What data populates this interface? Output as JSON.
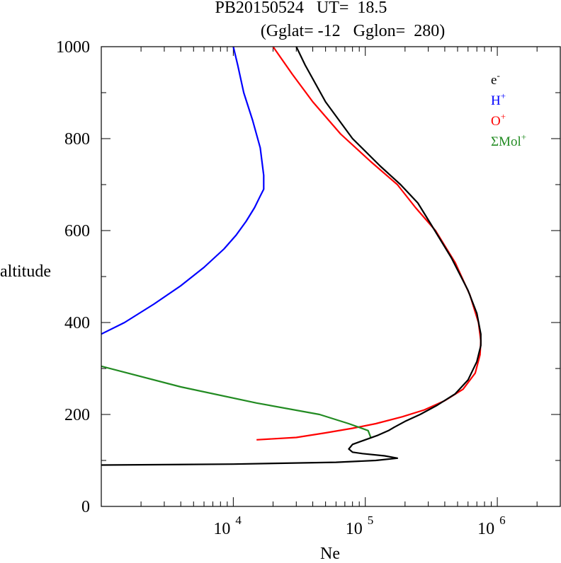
{
  "title_line1": "PB20150524   UT=  18.5",
  "title_line2": "(Gglat= -12   Gglon=  280)",
  "chart_data": {
    "type": "line",
    "xlabel": "Ne",
    "ylabel": "altitude",
    "xscale": "log",
    "xlim": [
      1000,
      3000000
    ],
    "ylim": [
      0,
      1000
    ],
    "x_tick_labels": [
      {
        "base": "10",
        "exp": "4",
        "value": 10000
      },
      {
        "base": "10",
        "exp": "5",
        "value": 100000
      },
      {
        "base": "10",
        "exp": "6",
        "value": 1000000
      }
    ],
    "y_ticks": [
      0,
      200,
      400,
      600,
      800,
      1000
    ],
    "y_tick_labels": [
      "0",
      "200",
      "400",
      "600",
      "800",
      "1000"
    ],
    "legend_placement": "top-right",
    "series": [
      {
        "name": "e",
        "sup": "-",
        "color": "#000000",
        "points": [
          [
            1000,
            90
          ],
          [
            10000,
            92
          ],
          [
            60000,
            96
          ],
          [
            120000,
            100
          ],
          [
            175000,
            105
          ],
          [
            140000,
            110
          ],
          [
            95000,
            115
          ],
          [
            80000,
            118
          ],
          [
            75000,
            125
          ],
          [
            80000,
            135
          ],
          [
            100000,
            145
          ],
          [
            125000,
            155
          ],
          [
            150000,
            165
          ],
          [
            165000,
            172
          ],
          [
            200000,
            185
          ],
          [
            260000,
            200
          ],
          [
            350000,
            220
          ],
          [
            480000,
            245
          ],
          [
            600000,
            275
          ],
          [
            700000,
            315
          ],
          [
            750000,
            350
          ],
          [
            750000,
            375
          ],
          [
            700000,
            420
          ],
          [
            600000,
            470
          ],
          [
            450000,
            540
          ],
          [
            320000,
            610
          ],
          [
            250000,
            660
          ],
          [
            185000,
            700
          ],
          [
            130000,
            740
          ],
          [
            80000,
            800
          ],
          [
            50000,
            880
          ],
          [
            35000,
            960
          ],
          [
            30000,
            1000
          ]
        ]
      },
      {
        "name": "H",
        "sup": "+",
        "color": "#0000ff",
        "points": [
          [
            1000,
            375
          ],
          [
            1500,
            400
          ],
          [
            2500,
            440
          ],
          [
            4000,
            480
          ],
          [
            6000,
            520
          ],
          [
            8500,
            560
          ],
          [
            10500,
            590
          ],
          [
            12500,
            620
          ],
          [
            14500,
            650
          ],
          [
            16000,
            675
          ],
          [
            17000,
            690
          ],
          [
            17000,
            720
          ],
          [
            16000,
            780
          ],
          [
            14000,
            840
          ],
          [
            12000,
            900
          ],
          [
            10800,
            960
          ],
          [
            10000,
            1000
          ]
        ]
      },
      {
        "name": "O",
        "sup": "+",
        "color": "#ff0000",
        "points": [
          [
            15000,
            145
          ],
          [
            30000,
            150
          ],
          [
            50000,
            160
          ],
          [
            80000,
            170
          ],
          [
            120000,
            180
          ],
          [
            190000,
            195
          ],
          [
            280000,
            210
          ],
          [
            400000,
            230
          ],
          [
            550000,
            255
          ],
          [
            680000,
            290
          ],
          [
            740000,
            330
          ],
          [
            750000,
            360
          ],
          [
            720000,
            400
          ],
          [
            620000,
            460
          ],
          [
            480000,
            530
          ],
          [
            340000,
            600
          ],
          [
            240000,
            650
          ],
          [
            175000,
            700
          ],
          [
            110000,
            750
          ],
          [
            65000,
            810
          ],
          [
            40000,
            880
          ],
          [
            28000,
            940
          ],
          [
            20000,
            1000
          ]
        ]
      },
      {
        "name": "ΣMol",
        "sup": "+",
        "color": "#228b22",
        "points": [
          [
            1000,
            305
          ],
          [
            4000,
            260
          ],
          [
            15000,
            225
          ],
          [
            45000,
            200
          ],
          [
            75000,
            180
          ],
          [
            105000,
            165
          ],
          [
            110000,
            150
          ]
        ]
      }
    ]
  }
}
